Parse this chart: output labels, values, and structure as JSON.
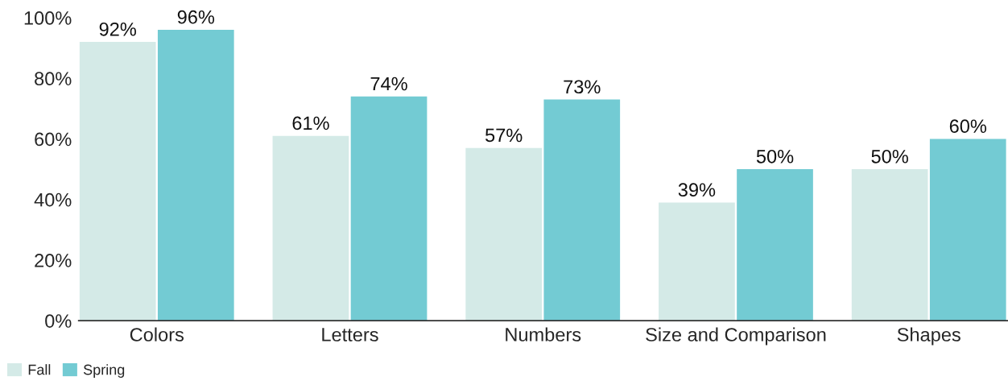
{
  "chart_data": {
    "type": "bar",
    "categories": [
      "Colors",
      "Letters",
      "Numbers",
      "Size and Comparison",
      "Shapes"
    ],
    "series": [
      {
        "name": "Fall",
        "color": "#d4eae7",
        "values": [
          92,
          61,
          57,
          39,
          50
        ],
        "value_labels": [
          "92%",
          "61%",
          "57%",
          "39%",
          "50%"
        ]
      },
      {
        "name": "Spring",
        "color": "#73cbd3",
        "values": [
          96,
          74,
          73,
          50,
          60
        ],
        "value_labels": [
          "96%",
          "74%",
          "73%",
          "50%",
          "60%"
        ]
      }
    ],
    "ylim": [
      0,
      100
    ],
    "yticks": [
      {
        "value": 0,
        "label": "0%"
      },
      {
        "value": 20,
        "label": "20%"
      },
      {
        "value": 40,
        "label": "40%"
      },
      {
        "value": 60,
        "label": "60%"
      },
      {
        "value": 80,
        "label": "80%"
      },
      {
        "value": 100,
        "label": "100%"
      }
    ],
    "grid": false,
    "legend": "bottom left"
  }
}
